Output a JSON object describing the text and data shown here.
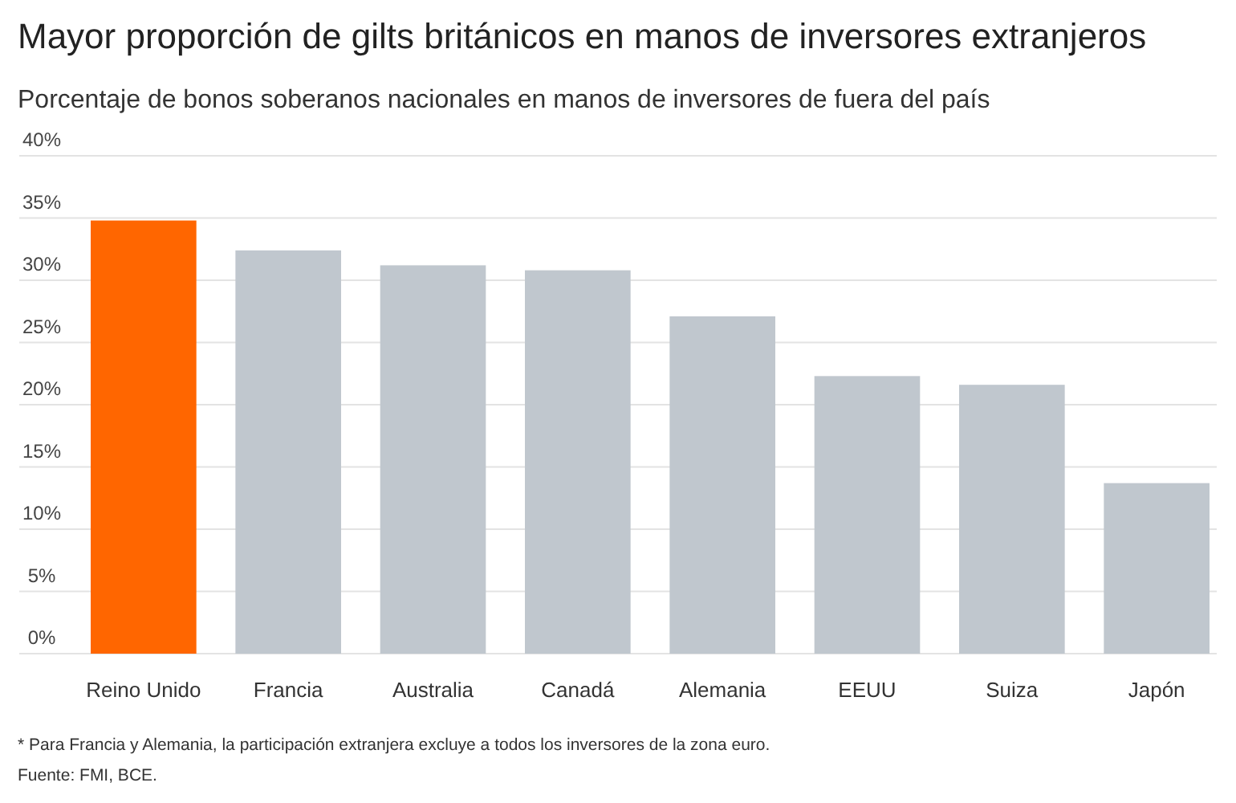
{
  "chart_data": {
    "type": "bar",
    "title": "Mayor proporción de gilts británicos en manos de inversores extranjeros",
    "subtitle": "Porcentaje de bonos soberanos nacionales en manos de inversores de fuera del país",
    "categories": [
      "Reino Unido",
      "Francia",
      "Australia",
      "Canadá",
      "Alemania",
      "EEUU",
      "Suiza",
      "Japón"
    ],
    "values": [
      34.8,
      32.4,
      31.2,
      30.8,
      27.1,
      22.3,
      21.6,
      13.7
    ],
    "colors": [
      "#ff6600",
      "#c0c7ce",
      "#c0c7ce",
      "#c0c7ce",
      "#c0c7ce",
      "#c0c7ce",
      "#c0c7ce",
      "#c0c7ce"
    ],
    "ylim": [
      0,
      40
    ],
    "yticks": [
      {
        "value": 0,
        "label": "0%"
      },
      {
        "value": 5,
        "label": "5%"
      },
      {
        "value": 10,
        "label": "10%"
      },
      {
        "value": 15,
        "label": "15%"
      },
      {
        "value": 20,
        "label": "20%"
      },
      {
        "value": 25,
        "label": "25%"
      },
      {
        "value": 30,
        "label": "30%"
      },
      {
        "value": 35,
        "label": "35%"
      },
      {
        "value": 40,
        "label": "40%"
      }
    ],
    "grid": "y",
    "annotations": [
      "* Para Francia y Alemania, la participación extranjera excluye a todos los inversores de la zona euro.",
      "Fuente: FMI, BCE."
    ]
  }
}
